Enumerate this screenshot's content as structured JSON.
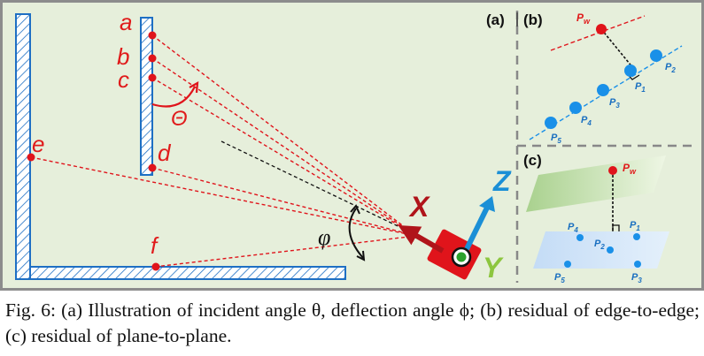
{
  "figure": {
    "points": {
      "a": "a",
      "b": "b",
      "c": "c",
      "d": "d",
      "e": "e",
      "f": "f"
    },
    "theta_symbol": "Θ",
    "phi_symbol": "φ",
    "axes": {
      "x": "X",
      "y": "Y",
      "z": "Z"
    },
    "panel_a_label": "(a)",
    "panel_b_label": "(b)",
    "panel_c_label": "(c)",
    "panel_b": {
      "pw_main": "P",
      "pw_sub": "w",
      "points": [
        {
          "main": "P",
          "sub": "1"
        },
        {
          "main": "P",
          "sub": "2"
        },
        {
          "main": "P",
          "sub": "3"
        },
        {
          "main": "P",
          "sub": "4"
        },
        {
          "main": "P",
          "sub": "5"
        }
      ]
    },
    "panel_c": {
      "pw_main": "P",
      "pw_sub": "w",
      "points": [
        {
          "main": "P",
          "sub": "1"
        },
        {
          "main": "P",
          "sub": "2"
        },
        {
          "main": "P",
          "sub": "3"
        },
        {
          "main": "P",
          "sub": "4"
        },
        {
          "main": "P",
          "sub": "5"
        }
      ]
    },
    "colors": {
      "background": "#e6efdb",
      "frame": "#8c8c8c",
      "wall": "#1e6fc4",
      "red": "#e0141b",
      "label_red": "#e01b1b",
      "axis_x": "#b0141a",
      "axis_z": "#1b8fd6",
      "axis_y": "#8dc63f",
      "point_blue": "#1a90e8",
      "label_blue": "#1a6fc0"
    }
  },
  "caption": {
    "fig_label": "Fig. 6:",
    "text": "(a) Illustration of incident angle θ, deflection angle ϕ; (b) residual of edge-to-edge; (c) residual of plane-to-plane."
  }
}
